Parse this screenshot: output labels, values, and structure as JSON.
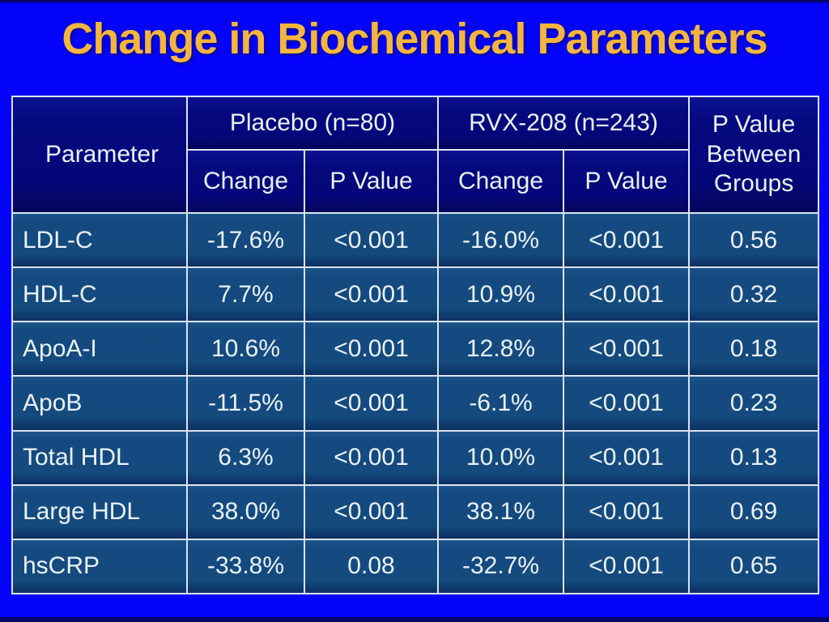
{
  "slide": {
    "title": "Change in Biochemical Parameters"
  },
  "colors": {
    "background": "#0303f9",
    "title_text": "#f4b53d",
    "header_cell": "#04077a",
    "data_cell": "#14497e",
    "cell_border": "#d9e4f0",
    "cell_text": "#eaf2fb",
    "edge_strip": "#050563"
  },
  "table": {
    "header": {
      "parameter": "Parameter",
      "placebo_group": "Placebo (n=80)",
      "rvx_group": "RVX-208 (n=243)",
      "between_groups": "P Value Between Groups",
      "sub": [
        "Change",
        "P Value",
        "Change",
        "P Value"
      ]
    },
    "rows": [
      {
        "parameter": "LDL-C",
        "placebo_change": "-17.6%",
        "placebo_p": "<0.001",
        "rvx_change": "-16.0%",
        "rvx_p": "<0.001",
        "between_p": "0.56"
      },
      {
        "parameter": "HDL-C",
        "placebo_change": "7.7%",
        "placebo_p": "<0.001",
        "rvx_change": "10.9%",
        "rvx_p": "<0.001",
        "between_p": "0.32"
      },
      {
        "parameter": "ApoA-I",
        "placebo_change": "10.6%",
        "placebo_p": "<0.001",
        "rvx_change": "12.8%",
        "rvx_p": "<0.001",
        "between_p": "0.18"
      },
      {
        "parameter": "ApoB",
        "placebo_change": "-11.5%",
        "placebo_p": "<0.001",
        "rvx_change": "-6.1%",
        "rvx_p": "<0.001",
        "between_p": "0.23"
      },
      {
        "parameter": "Total HDL",
        "placebo_change": "6.3%",
        "placebo_p": "<0.001",
        "rvx_change": "10.0%",
        "rvx_p": "<0.001",
        "between_p": "0.13"
      },
      {
        "parameter": "Large HDL",
        "placebo_change": "38.0%",
        "placebo_p": "<0.001",
        "rvx_change": "38.1%",
        "rvx_p": "<0.001",
        "between_p": "0.69"
      },
      {
        "parameter": "hsCRP",
        "placebo_change": "-33.8%",
        "placebo_p": "0.08",
        "rvx_change": "-32.7%",
        "rvx_p": "<0.001",
        "between_p": "0.65"
      }
    ]
  }
}
